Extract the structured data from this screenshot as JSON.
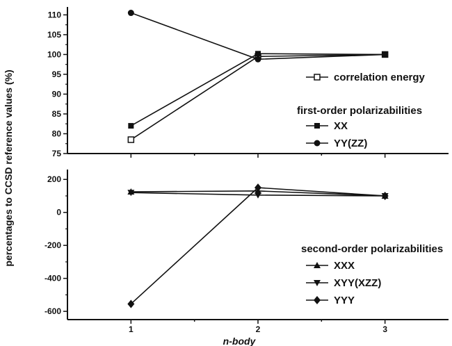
{
  "chart_data": [
    {
      "type": "line",
      "panel": "top",
      "x": [
        1,
        2,
        3
      ],
      "xlim": [
        0.5,
        3.5
      ],
      "ylim": [
        75,
        112
      ],
      "yticks": [
        75,
        80,
        85,
        90,
        95,
        100,
        105,
        110
      ],
      "legend_heading": "first-order polarizabilities",
      "series": [
        {
          "name": "correlation energy",
          "marker": "open-square",
          "values": [
            78.5,
            99.5,
            100
          ]
        },
        {
          "name": "XX",
          "marker": "filled-square",
          "values": [
            82.0,
            100.2,
            100
          ]
        },
        {
          "name": "YY(ZZ)",
          "marker": "filled-circle",
          "values": [
            110.5,
            98.8,
            100
          ]
        }
      ]
    },
    {
      "type": "line",
      "panel": "bottom",
      "x": [
        1,
        2,
        3
      ],
      "xlim": [
        0.5,
        3.5
      ],
      "ylim": [
        -650,
        260
      ],
      "yticks": [
        -600,
        -400,
        -200,
        0,
        200
      ],
      "xticks": [
        1,
        2,
        3
      ],
      "legend_heading": "second-order polarizabilities",
      "series": [
        {
          "name": "XXX",
          "marker": "filled-triangle-up",
          "values": [
            125,
            130,
            100
          ]
        },
        {
          "name": "XYY(XZZ)",
          "marker": "filled-triangle-down",
          "values": [
            120,
            105,
            100
          ]
        },
        {
          "name": "YYY",
          "marker": "filled-diamond",
          "values": [
            -555,
            150,
            100
          ]
        }
      ]
    }
  ],
  "axes": {
    "ylabel": "percentages to CCSD reference values (%)",
    "xlabel": "n-body"
  },
  "colors": {
    "line": "#111111",
    "background": "#ffffff"
  }
}
